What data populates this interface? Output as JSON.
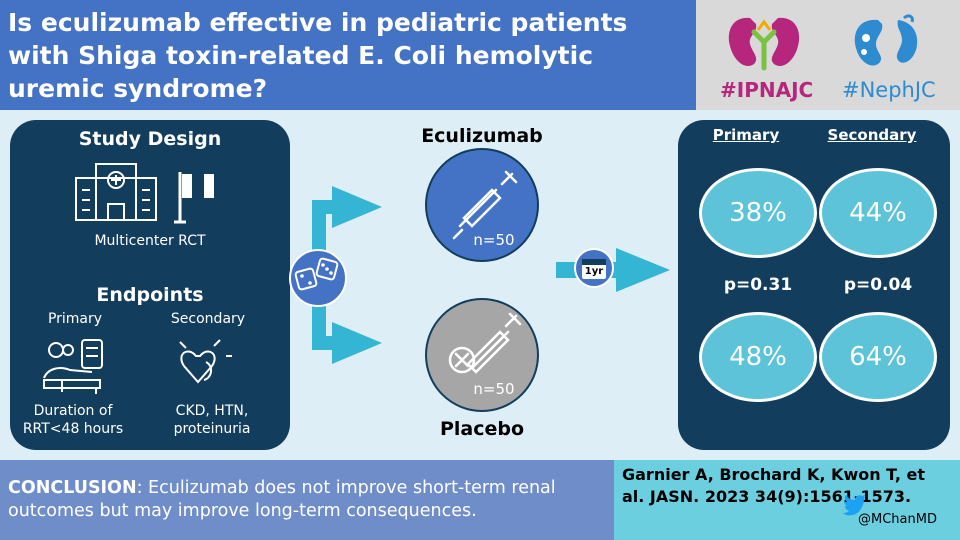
{
  "header": {
    "title": "Is eculizumab effective in pediatric patients with Shiga toxin-related E. Coli hemolytic uremic syndrome?"
  },
  "logos": {
    "ipnajc": "#IPNAJC",
    "nephjc": "#NephJC"
  },
  "study": {
    "design_title": "Study Design",
    "design_label": "Multicenter RCT",
    "endpoints_title": "Endpoints",
    "primary_label": "Primary",
    "secondary_label": "Secondary",
    "primary_text": "Duration of RRT<48 hours",
    "secondary_text": "CKD, HTN, proteinuria"
  },
  "arms": {
    "drug_label": "Eculizumab",
    "drug_n": "n=50",
    "placebo_label": "Placebo",
    "placebo_n": "n=50",
    "followup": "1yr"
  },
  "results": {
    "primary_header": "Primary",
    "secondary_header": "Secondary",
    "ecu_primary": "38%",
    "ecu_secondary": "44%",
    "p_primary": "p=0.31",
    "p_secondary": "p=0.04",
    "pla_primary": "48%",
    "pla_secondary": "64%"
  },
  "footer": {
    "conclusion_bold": "CONCLUSION",
    "conclusion_text": ": Eculizumab does not improve short-term renal outcomes but may improve long-term consequences.",
    "citation": "Garnier A, Brochard K, Kwon T, et al. JASN. 2023 34(9):1561-1573.",
    "handle": "@MChanMD"
  },
  "colors": {
    "header_blue": "#4472c4",
    "navy": "#133d5c",
    "teal": "#5cc3d8",
    "arrow": "#34b5d4",
    "light_bg": "#deeef7",
    "ipna_magenta": "#b5267c",
    "nephjc_blue": "#2e8bd0"
  }
}
